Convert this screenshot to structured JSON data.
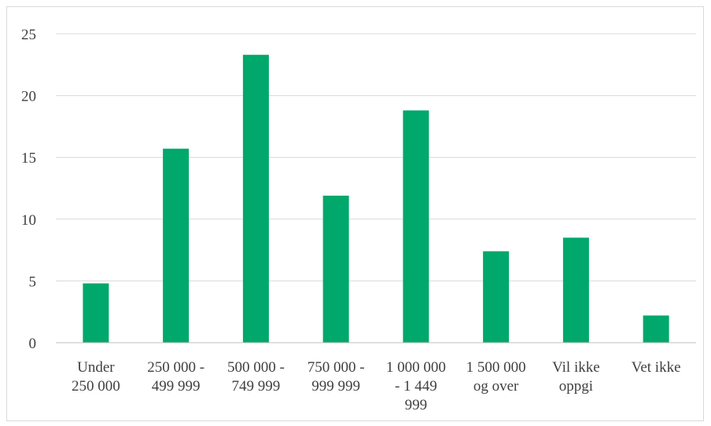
{
  "chart_data": {
    "type": "bar",
    "categories": [
      [
        "Under",
        "250 000"
      ],
      [
        "250 000 -",
        "499 999"
      ],
      [
        "500 000 -",
        "749 999"
      ],
      [
        "750 000 -",
        "999 999"
      ],
      [
        "1 000 000",
        "- 1 449",
        "999"
      ],
      [
        "1 500 000",
        "og over"
      ],
      [
        "Vil ikke",
        "oppgi"
      ],
      [
        "Vet  ikke"
      ]
    ],
    "values": [
      4.8,
      15.7,
      23.3,
      11.9,
      18.8,
      7.4,
      8.5,
      2.2
    ],
    "yticks": [
      0,
      5,
      10,
      15,
      20,
      25
    ],
    "ylim": [
      0,
      25
    ],
    "grid": true,
    "title": "",
    "xlabel": "",
    "ylabel": "",
    "bar_color": "#00A86B",
    "grid_color": "#d9d9d9",
    "axis_color": "#bfbfbf",
    "text_color": "#404040"
  }
}
